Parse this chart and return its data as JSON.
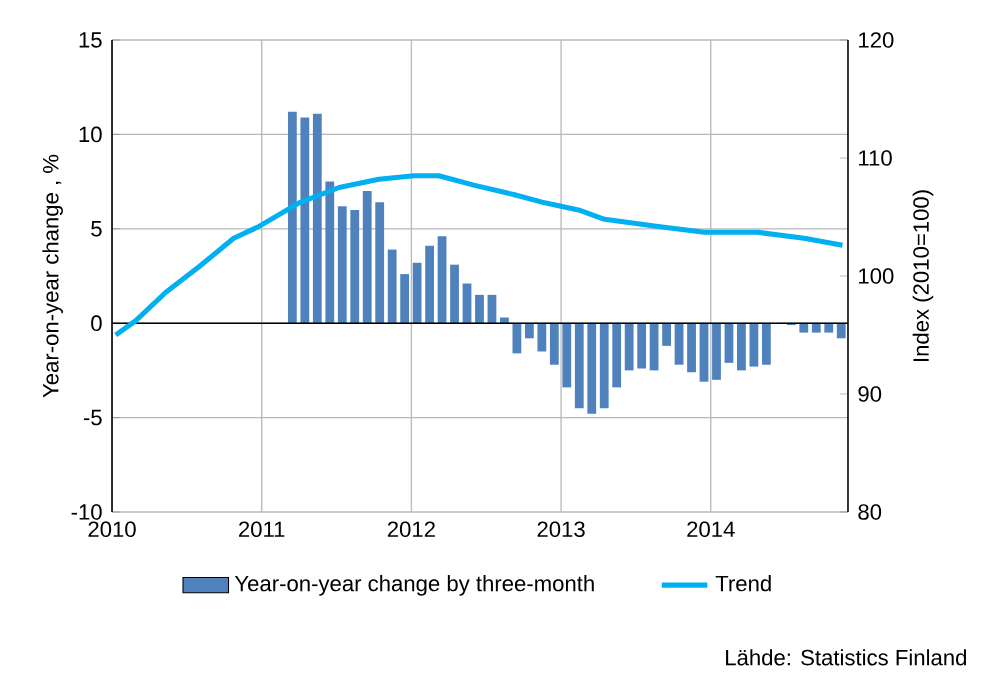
{
  "chart_data": {
    "type": "bar",
    "ylabel": "Year-on-year change , %",
    "y2label": "Index (2010=100)",
    "xlim": [
      "2010-01",
      "2014-12"
    ],
    "xticks": [
      "2010",
      "2011",
      "2012",
      "2013",
      "2014"
    ],
    "ylim": [
      -10,
      15
    ],
    "yticks": [
      -10,
      -5,
      0,
      5,
      10,
      15
    ],
    "y2lim": [
      80,
      120
    ],
    "y2ticks": [
      80,
      90,
      100,
      110,
      120
    ],
    "grid": true,
    "legend": "bottom",
    "annotations": [
      "Lähde: Statistics Finland"
    ],
    "series": [
      {
        "name": "Year-on-year change by three-month",
        "color": "#4f81bd",
        "x": [
          "2011-03-15",
          "2011-04-15",
          "2011-05-15",
          "2011-06-15",
          "2011-07-15",
          "2011-08-15",
          "2011-09-15",
          "2011-10-15",
          "2011-11-15",
          "2011-12-15",
          "2012-01-15",
          "2012-02-15",
          "2012-03-15",
          "2012-04-15",
          "2012-05-15",
          "2012-06-15",
          "2012-07-15",
          "2012-08-15",
          "2012-09-15",
          "2012-10-15",
          "2012-11-15",
          "2012-12-15",
          "2013-01-15",
          "2013-02-15",
          "2013-03-15",
          "2013-04-15",
          "2013-05-15",
          "2013-06-15",
          "2013-07-15",
          "2013-08-15",
          "2013-09-15",
          "2013-10-15",
          "2013-11-15",
          "2013-12-15",
          "2014-01-15",
          "2014-02-15",
          "2014-03-15",
          "2014-04-15",
          "2014-05-15",
          "2014-06-15",
          "2014-07-15",
          "2014-08-15",
          "2014-09-15",
          "2014-10-15",
          "2014-11-15"
        ],
        "values": [
          11.2,
          10.9,
          11.1,
          7.5,
          6.2,
          6.0,
          7.0,
          6.4,
          3.9,
          2.6,
          3.2,
          4.1,
          4.6,
          3.1,
          2.1,
          1.5,
          1.5,
          0.3,
          -1.6,
          -0.8,
          -1.5,
          -2.2,
          -3.4,
          -4.5,
          -4.8,
          -4.5,
          -3.4,
          -2.5,
          -2.4,
          -2.5,
          -1.2,
          -2.2,
          -2.6,
          -3.1,
          -3.0,
          -2.1,
          -2.5,
          -2.3,
          -2.2,
          null,
          -0.1,
          -0.5,
          -0.5,
          -0.5,
          -0.8
        ]
      },
      {
        "name": "Trend",
        "type": "line",
        "axis": "y2",
        "color": "#00b0f0",
        "x": [
          "2010-01-10",
          "2010-02-28",
          "2010-05-10",
          "2010-08-01",
          "2010-10-24",
          "2010-12-25",
          "2011-04-01",
          "2011-07-07",
          "2011-10-13",
          "2012-01-07",
          "2012-03-07",
          "2012-06-01",
          "2012-09-07",
          "2012-11-22",
          "2013-02-13",
          "2013-04-16",
          "2013-08-25",
          "2013-12-16",
          "2014-04-25",
          "2014-08-16",
          "2014-11-18"
        ],
        "values": [
          95.0,
          96.2,
          98.6,
          100.8,
          103.2,
          104.2,
          106.2,
          107.5,
          108.2,
          108.5,
          108.5,
          107.7,
          106.9,
          106.2,
          105.6,
          104.8,
          104.2,
          103.7,
          103.7,
          103.2,
          102.6
        ]
      }
    ]
  }
}
